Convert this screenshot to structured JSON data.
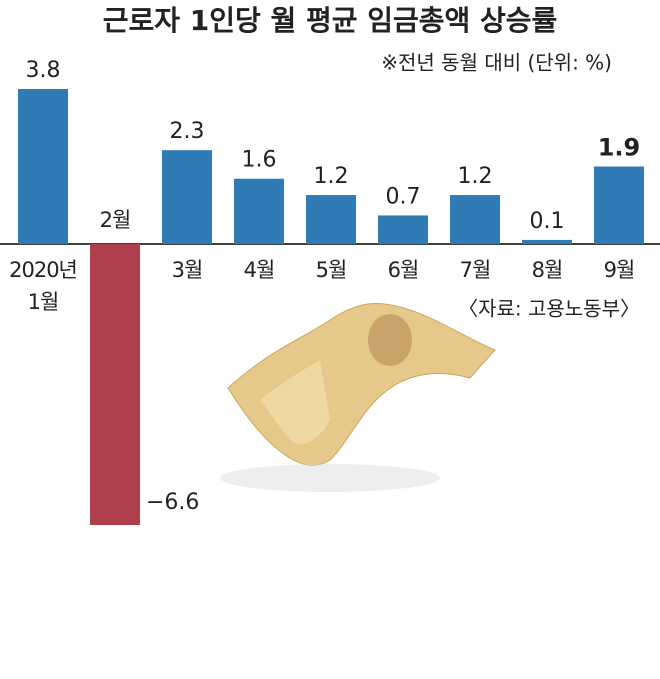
{
  "chart_data": {
    "type": "bar",
    "title": "근로자 1인당 월 평균 임금총액 상승률",
    "subtitle": "※전년 동월 대비 (단위: %)",
    "source": "〈자료: 고용노동부〉",
    "categories": [
      "2020년 1월",
      "2월",
      "3월",
      "4월",
      "5월",
      "6월",
      "7월",
      "8월",
      "9월"
    ],
    "values": [
      3.8,
      -6.6,
      2.3,
      1.6,
      1.2,
      0.7,
      1.2,
      0.1,
      1.9
    ],
    "value_labels": [
      "3.8",
      "−6.6",
      "2.3",
      "1.6",
      "1.2",
      "0.7",
      "1.2",
      "0.1",
      "1.9"
    ],
    "color": "#2e7bb6",
    "negative_color": "#b03f4e",
    "emphasized_index": 8
  }
}
